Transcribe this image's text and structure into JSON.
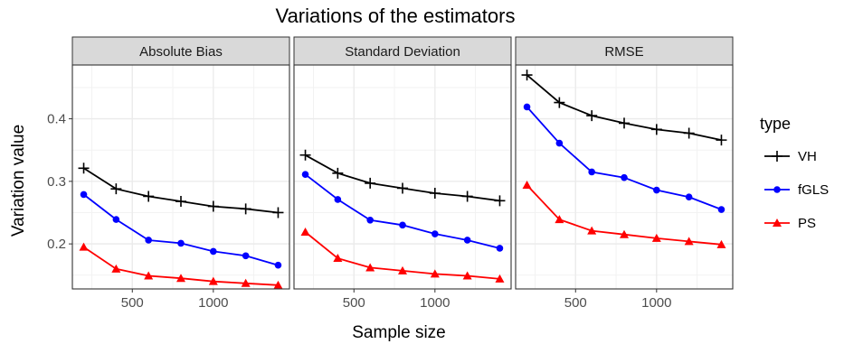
{
  "chart_data": {
    "type": "line",
    "title": "Variations of the estimators",
    "xlabel": "Sample size",
    "ylabel": "Variation value",
    "x": [
      200,
      400,
      600,
      800,
      1000,
      1200,
      1400
    ],
    "x_ticks": [
      "500",
      "1000"
    ],
    "y_ticks": [
      "0.2",
      "0.3",
      "0.4"
    ],
    "xlim": [
      130,
      1470
    ],
    "ylim": [
      0.128,
      0.486
    ],
    "grid": true,
    "legend_title": "type",
    "legend_position": "right",
    "panels": [
      {
        "name": "Absolute Bias",
        "series": [
          {
            "name": "VH",
            "values": [
              0.321,
              0.288,
              0.276,
              0.268,
              0.26,
              0.256,
              0.25
            ]
          },
          {
            "name": "fGLS",
            "values": [
              0.279,
              0.239,
              0.206,
              0.201,
              0.188,
              0.181,
              0.166
            ]
          },
          {
            "name": "PS",
            "values": [
              0.195,
              0.16,
              0.149,
              0.145,
              0.14,
              0.137,
              0.134
            ]
          }
        ]
      },
      {
        "name": "Standard Deviation",
        "series": [
          {
            "name": "VH",
            "values": [
              0.342,
              0.313,
              0.297,
              0.289,
              0.281,
              0.276,
              0.269
            ]
          },
          {
            "name": "fGLS",
            "values": [
              0.311,
              0.271,
              0.238,
              0.23,
              0.216,
              0.206,
              0.193
            ]
          },
          {
            "name": "PS",
            "values": [
              0.219,
              0.177,
              0.162,
              0.157,
              0.152,
              0.149,
              0.144
            ]
          }
        ]
      },
      {
        "name": "RMSE",
        "series": [
          {
            "name": "VH",
            "values": [
              0.47,
              0.426,
              0.405,
              0.393,
              0.383,
              0.377,
              0.366
            ]
          },
          {
            "name": "fGLS",
            "values": [
              0.419,
              0.361,
              0.315,
              0.306,
              0.286,
              0.275,
              0.255
            ]
          },
          {
            "name": "PS",
            "values": [
              0.294,
              0.239,
              0.221,
              0.215,
              0.209,
              0.204,
              0.199
            ]
          }
        ]
      }
    ],
    "colors": {
      "VH": "#000000",
      "fGLS": "#0000ff",
      "PS": "#ff0000"
    },
    "markers": {
      "VH": "plus",
      "fGLS": "circle",
      "PS": "triangle"
    }
  }
}
